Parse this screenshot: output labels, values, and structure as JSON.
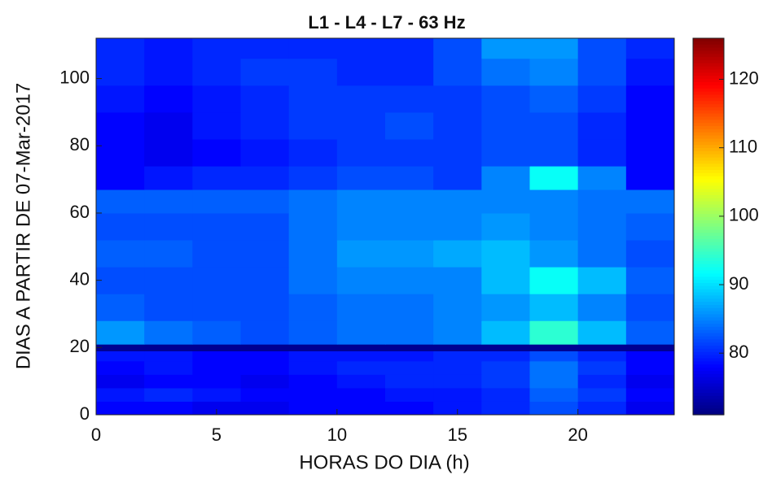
{
  "chart_data": {
    "type": "heatmap",
    "title": "L1 - L4 - L7 - 63 Hz",
    "xlabel": "HORAS DO DIA (h)",
    "ylabel": "DIAS A PARTIR DE 07-Mar-2017",
    "colormap": "jet",
    "xbins": [
      0,
      2,
      4,
      6,
      8,
      10,
      12,
      14,
      16,
      18,
      20,
      22,
      24
    ],
    "ybins": [
      0,
      4,
      8,
      12,
      16,
      19,
      21,
      28,
      36,
      44,
      52,
      60,
      67,
      74,
      82,
      90,
      98,
      106,
      112
    ],
    "values": [
      [
        78,
        78,
        77,
        77,
        78,
        78,
        78,
        79,
        80,
        82,
        80,
        77
      ],
      [
        79,
        80,
        79,
        78,
        78,
        78,
        79,
        79,
        80,
        83,
        81,
        78
      ],
      [
        77,
        78,
        78,
        77,
        78,
        79,
        80,
        80,
        81,
        84,
        80,
        77
      ],
      [
        78,
        79,
        78,
        78,
        79,
        80,
        80,
        80,
        81,
        84,
        81,
        78
      ],
      [
        79,
        79,
        78,
        78,
        79,
        79,
        79,
        80,
        80,
        82,
        80,
        78
      ],
      [
        72,
        72,
        72,
        72,
        72,
        72,
        72,
        72,
        72,
        72,
        72,
        72
      ],
      [
        86,
        84,
        83,
        82,
        83,
        84,
        84,
        85,
        88,
        94,
        88,
        83
      ],
      [
        83,
        82,
        82,
        82,
        83,
        84,
        84,
        85,
        86,
        88,
        85,
        82
      ],
      [
        82,
        82,
        82,
        82,
        84,
        85,
        85,
        85,
        88,
        92,
        88,
        83
      ],
      [
        83,
        83,
        82,
        82,
        84,
        86,
        86,
        87,
        88,
        86,
        84,
        82
      ],
      [
        82,
        82,
        82,
        82,
        84,
        85,
        85,
        85,
        86,
        85,
        84,
        83
      ],
      [
        83,
        83,
        83,
        83,
        84,
        85,
        85,
        85,
        85,
        85,
        84,
        84
      ],
      [
        78,
        79,
        80,
        80,
        81,
        82,
        82,
        81,
        85,
        92,
        85,
        78
      ],
      [
        78,
        77,
        78,
        79,
        80,
        81,
        81,
        81,
        82,
        82,
        80,
        78
      ],
      [
        78,
        77,
        79,
        80,
        81,
        81,
        82,
        81,
        82,
        82,
        80,
        78
      ],
      [
        79,
        78,
        79,
        80,
        81,
        81,
        81,
        81,
        82,
        83,
        81,
        78
      ],
      [
        80,
        79,
        80,
        81,
        81,
        80,
        80,
        82,
        84,
        85,
        82,
        79
      ],
      [
        80,
        79,
        80,
        80,
        80,
        80,
        80,
        82,
        86,
        86,
        82,
        80
      ]
    ],
    "xlim": [
      0,
      24
    ],
    "ylim": [
      0,
      112
    ],
    "clim": [
      71,
      126
    ],
    "xticks": [
      0,
      5,
      10,
      15,
      20
    ],
    "yticks": [
      0,
      20,
      40,
      60,
      80,
      100
    ],
    "cticks": [
      80,
      90,
      100,
      110,
      120
    ]
  }
}
